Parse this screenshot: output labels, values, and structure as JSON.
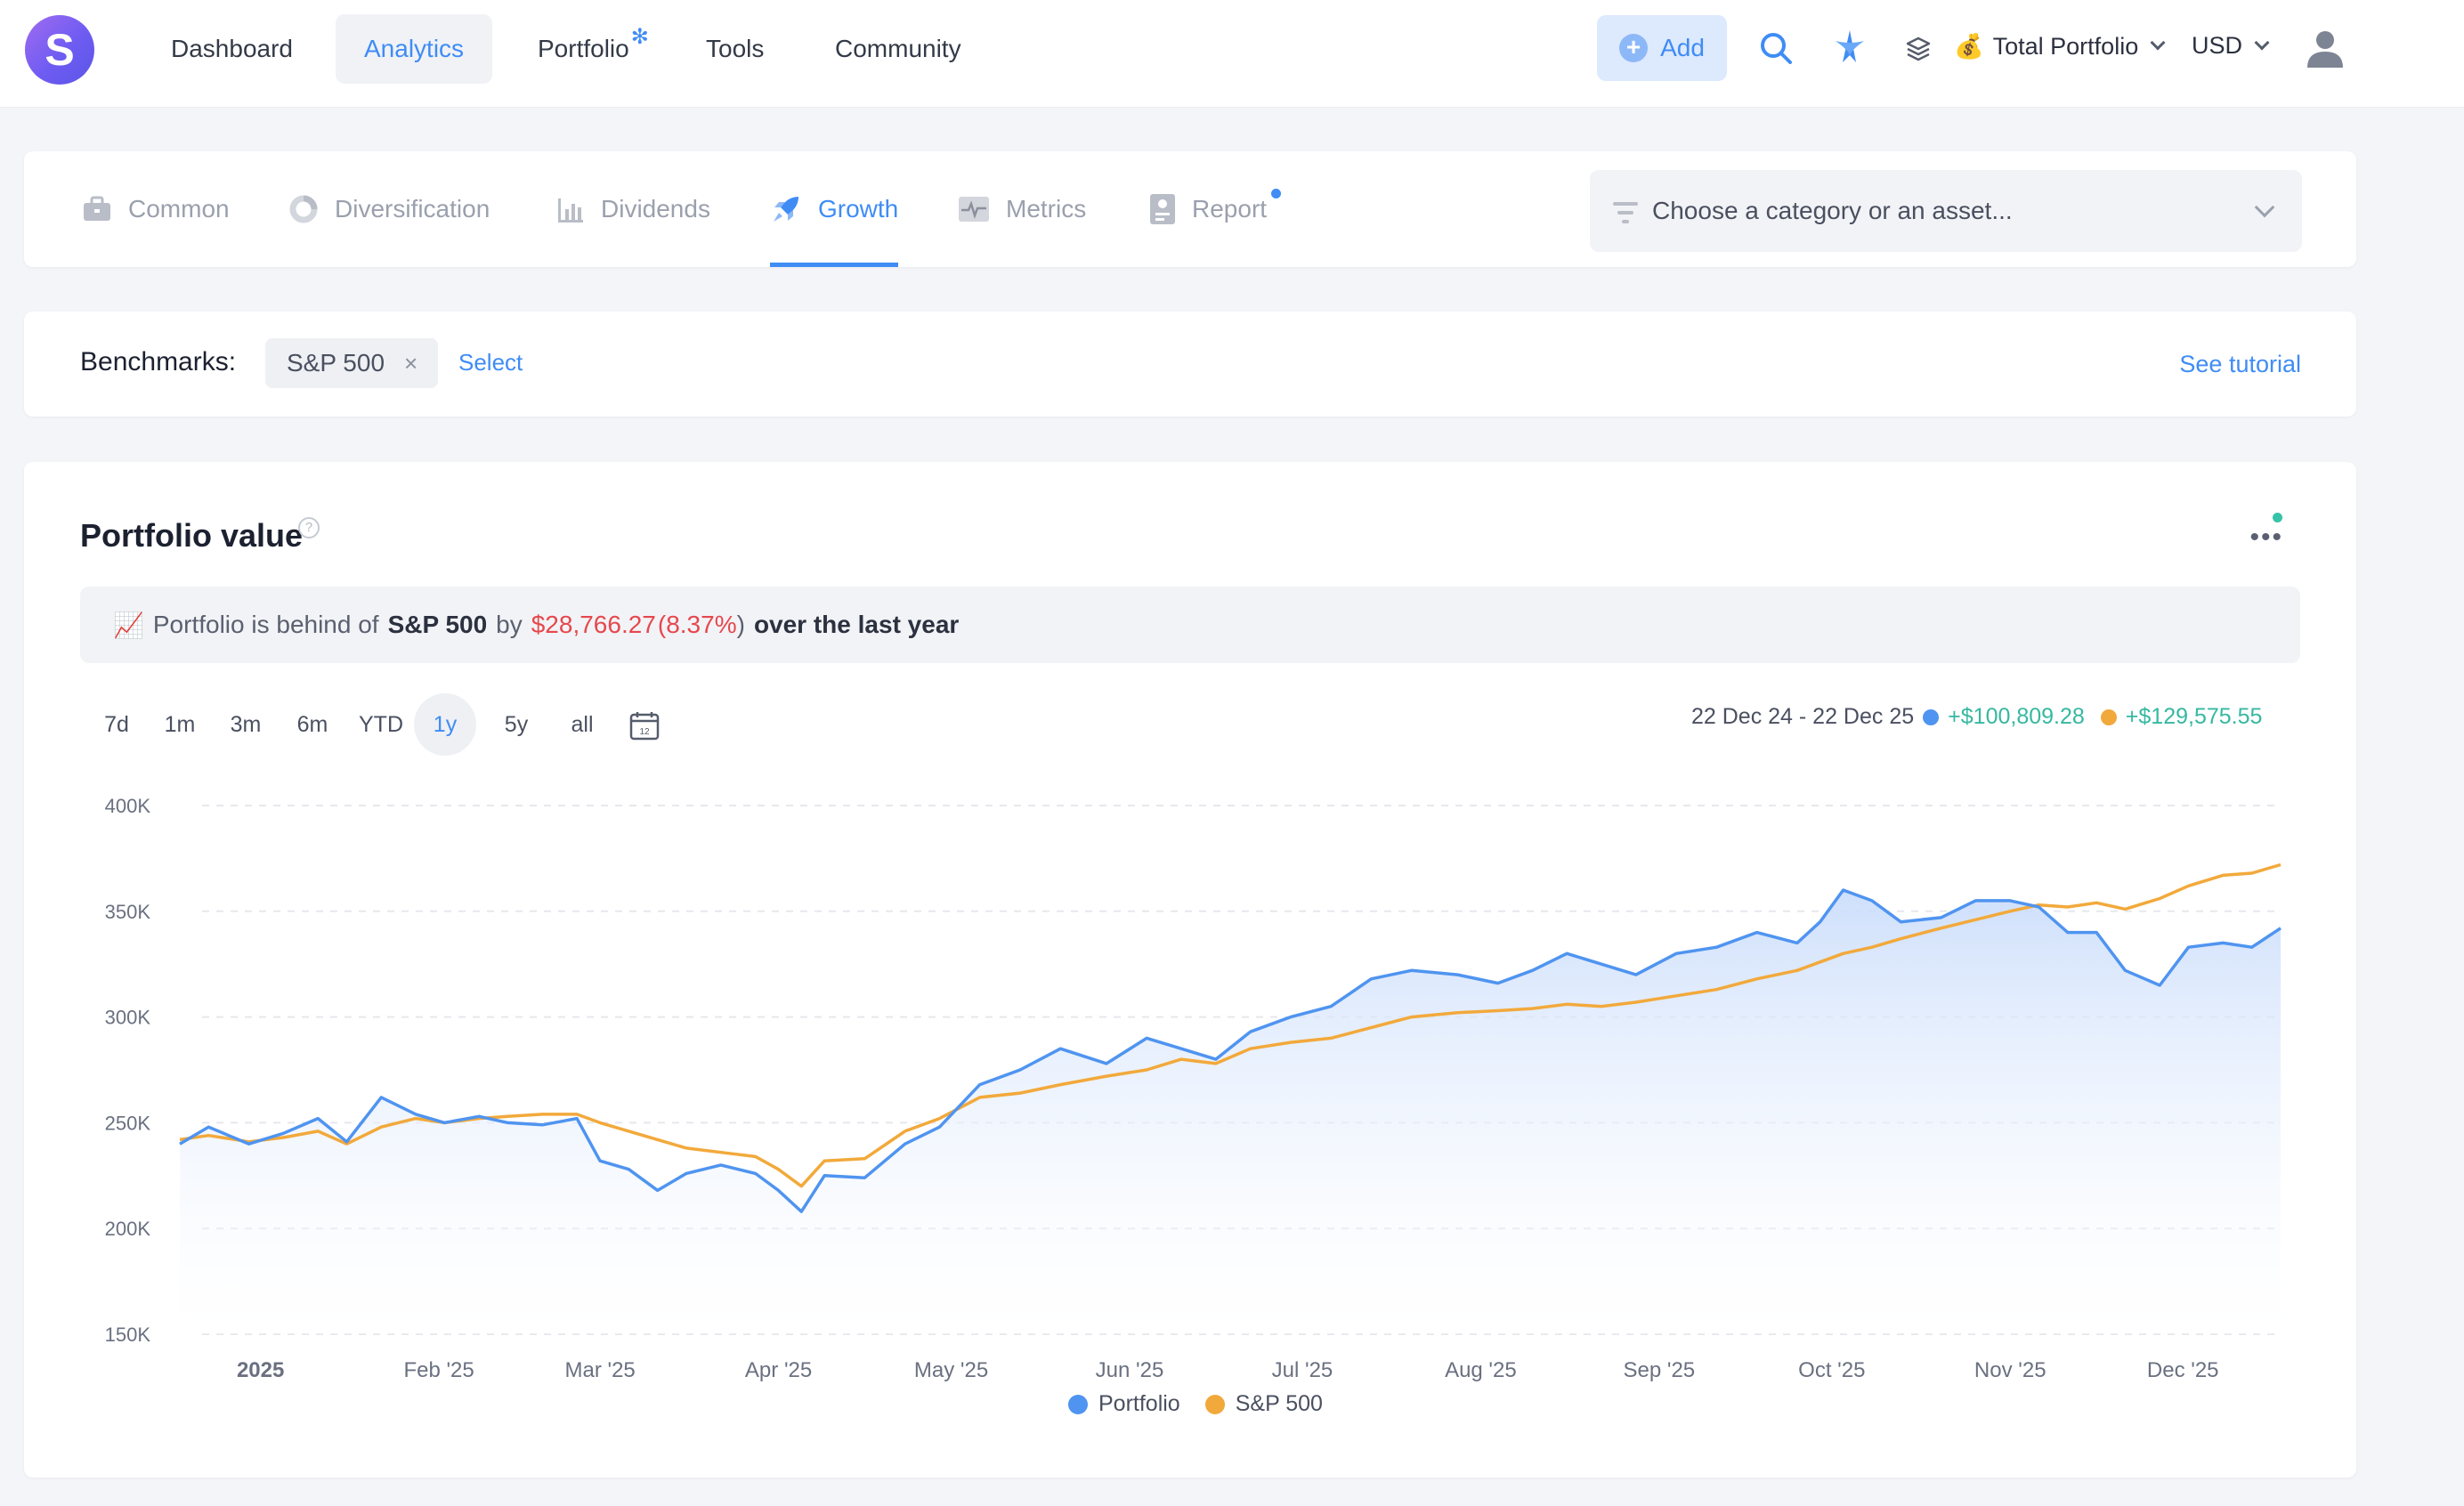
{
  "topbar": {
    "logo_letter": "S",
    "nav": [
      {
        "label": "Dashboard"
      },
      {
        "label": "Analytics"
      },
      {
        "label": "Portfolio"
      },
      {
        "label": "Tools"
      },
      {
        "label": "Community"
      }
    ],
    "portfolio_marker": "✻",
    "add_label": "Add",
    "portfolio_select": "Total Portfolio",
    "portfolio_emoji": "💰",
    "currency": "USD"
  },
  "tabs": {
    "items": [
      {
        "label": "Common",
        "icon": "briefcase-icon"
      },
      {
        "label": "Diversification",
        "icon": "donut-icon"
      },
      {
        "label": "Dividends",
        "icon": "bar-chart-icon"
      },
      {
        "label": "Growth",
        "icon": "rocket-icon"
      },
      {
        "label": "Metrics",
        "icon": "pulse-icon"
      },
      {
        "label": "Report",
        "icon": "report-icon"
      }
    ],
    "active": "Growth",
    "asset_placeholder": "Choose a category or an asset..."
  },
  "benchmarks": {
    "label": "Benchmarks:",
    "chip": "S&P 500",
    "chip_remove": "×",
    "select_label": "Select",
    "tutorial_label": "See tutorial"
  },
  "portfolio_value": {
    "title": "Portfolio value",
    "help": "?",
    "summary": {
      "emoji": "📈",
      "prefix": "Portfolio is behind of",
      "benchmark": "S&P 500",
      "by": "by",
      "amount": "$28,766.27",
      "percent_open": "(",
      "percent": "8.37%",
      "percent_close": ")",
      "suffix": "over the last year"
    },
    "ranges": [
      "7d",
      "1m",
      "3m",
      "6m",
      "YTD",
      "1y",
      "5y",
      "all"
    ],
    "active_range": "1y",
    "date_range": "22 Dec 24 - 22 Dec 25",
    "portfolio_change": "+$100,809.28",
    "benchmark_change": "+$129,575.55"
  },
  "colors": {
    "accent": "#3f8cf5",
    "portfolio_line": "#4f94f0",
    "benchmark_line": "#f2a93b",
    "negative": "#e5484d",
    "positive": "#36b8a0"
  },
  "chart_data": {
    "type": "line",
    "ylim": [
      150000,
      400000
    ],
    "y_ticks": [
      "400K",
      "350K",
      "300K",
      "250K",
      "200K",
      "150K"
    ],
    "y_tick_values": [
      400000,
      350000,
      300000,
      250000,
      200000,
      150000
    ],
    "x_ticks": [
      "2025",
      "Feb '25",
      "Mar '25",
      "Apr '25",
      "May '25",
      "Jun '25",
      "Jul '25",
      "Aug '25",
      "Sep '25",
      "Oct '25",
      "Nov '25",
      "Dec '25"
    ],
    "x_tick_dates": [
      "2025-01-01",
      "2025-02-01",
      "2025-03-01",
      "2025-04-01",
      "2025-05-01",
      "2025-06-01",
      "2025-07-01",
      "2025-08-01",
      "2025-09-01",
      "2025-10-01",
      "2025-11-01",
      "2025-12-01"
    ],
    "x_range": [
      "2024-12-22",
      "2025-12-22"
    ],
    "legend": [
      "Portfolio",
      "S&P 500"
    ],
    "series": [
      {
        "name": "Portfolio",
        "x": [
          "2024-12-22",
          "2024-12-27",
          "2025-01-03",
          "2025-01-09",
          "2025-01-15",
          "2025-01-20",
          "2025-01-26",
          "2025-02-01",
          "2025-02-06",
          "2025-02-12",
          "2025-02-17",
          "2025-02-23",
          "2025-03-01",
          "2025-03-05",
          "2025-03-10",
          "2025-03-15",
          "2025-03-20",
          "2025-03-26",
          "2025-04-01",
          "2025-04-05",
          "2025-04-09",
          "2025-04-13",
          "2025-04-20",
          "2025-04-27",
          "2025-05-03",
          "2025-05-10",
          "2025-05-17",
          "2025-05-24",
          "2025-06-01",
          "2025-06-08",
          "2025-06-14",
          "2025-06-20",
          "2025-06-26",
          "2025-07-03",
          "2025-07-10",
          "2025-07-17",
          "2025-07-24",
          "2025-08-01",
          "2025-08-08",
          "2025-08-14",
          "2025-08-20",
          "2025-08-26",
          "2025-09-01",
          "2025-09-08",
          "2025-09-15",
          "2025-09-22",
          "2025-09-29",
          "2025-10-03",
          "2025-10-07",
          "2025-10-12",
          "2025-10-17",
          "2025-10-24",
          "2025-10-30",
          "2025-11-05",
          "2025-11-10",
          "2025-11-15",
          "2025-11-20",
          "2025-11-25",
          "2025-12-01",
          "2025-12-06",
          "2025-12-12",
          "2025-12-17",
          "2025-12-22"
        ],
        "values": [
          240000,
          248000,
          240000,
          245000,
          252000,
          241000,
          262000,
          254000,
          250000,
          253000,
          250000,
          249000,
          252000,
          232000,
          228000,
          218000,
          226000,
          230000,
          226000,
          218000,
          208000,
          225000,
          224000,
          240000,
          248000,
          268000,
          275000,
          285000,
          278000,
          290000,
          285000,
          280000,
          293000,
          300000,
          305000,
          318000,
          322000,
          320000,
          316000,
          322000,
          330000,
          325000,
          320000,
          330000,
          333000,
          340000,
          335000,
          345000,
          360000,
          355000,
          345000,
          347000,
          355000,
          355000,
          352000,
          340000,
          340000,
          322000,
          315000,
          333000,
          335000,
          333000,
          342000
        ]
      },
      {
        "name": "S&P 500",
        "x": [
          "2024-12-22",
          "2024-12-27",
          "2025-01-03",
          "2025-01-09",
          "2025-01-15",
          "2025-01-20",
          "2025-01-26",
          "2025-02-01",
          "2025-02-06",
          "2025-02-12",
          "2025-02-17",
          "2025-02-23",
          "2025-03-01",
          "2025-03-05",
          "2025-03-10",
          "2025-03-15",
          "2025-03-20",
          "2025-03-26",
          "2025-04-01",
          "2025-04-05",
          "2025-04-09",
          "2025-04-13",
          "2025-04-20",
          "2025-04-27",
          "2025-05-03",
          "2025-05-10",
          "2025-05-17",
          "2025-05-24",
          "2025-06-01",
          "2025-06-08",
          "2025-06-14",
          "2025-06-20",
          "2025-06-26",
          "2025-07-03",
          "2025-07-10",
          "2025-07-17",
          "2025-07-24",
          "2025-08-01",
          "2025-08-08",
          "2025-08-14",
          "2025-08-20",
          "2025-08-26",
          "2025-09-01",
          "2025-09-08",
          "2025-09-15",
          "2025-09-22",
          "2025-09-29",
          "2025-10-03",
          "2025-10-07",
          "2025-10-12",
          "2025-10-17",
          "2025-10-24",
          "2025-10-30",
          "2025-11-05",
          "2025-11-10",
          "2025-11-15",
          "2025-11-20",
          "2025-11-25",
          "2025-12-01",
          "2025-12-06",
          "2025-12-12",
          "2025-12-17",
          "2025-12-22"
        ],
        "values": [
          242000,
          244000,
          241000,
          243000,
          246000,
          240000,
          248000,
          252000,
          250000,
          252000,
          253000,
          254000,
          254000,
          250000,
          246000,
          242000,
          238000,
          236000,
          234000,
          228000,
          220000,
          232000,
          233000,
          246000,
          252000,
          262000,
          264000,
          268000,
          272000,
          275000,
          280000,
          278000,
          285000,
          288000,
          290000,
          295000,
          300000,
          302000,
          303000,
          304000,
          306000,
          305000,
          307000,
          310000,
          313000,
          318000,
          322000,
          326000,
          330000,
          333000,
          337000,
          342000,
          346000,
          350000,
          353000,
          352000,
          354000,
          351000,
          356000,
          362000,
          367000,
          368000,
          372000
        ]
      }
    ]
  }
}
